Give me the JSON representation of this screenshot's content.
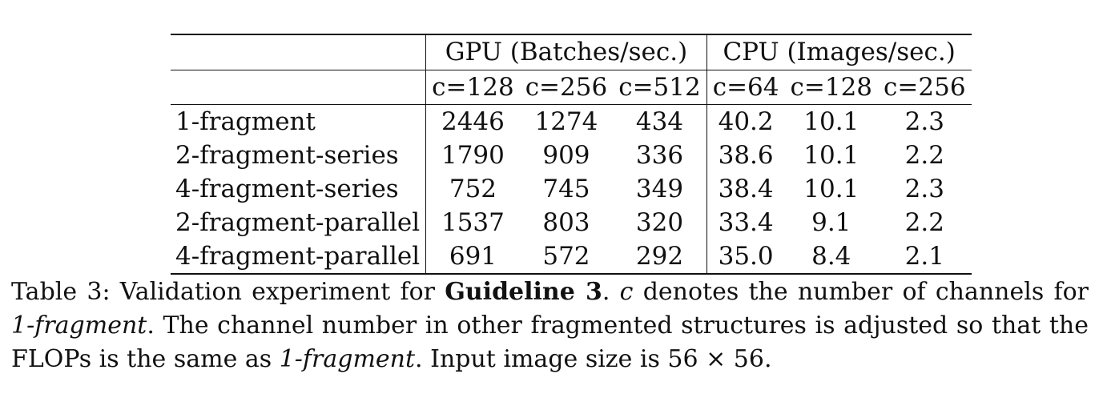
{
  "table": {
    "header": {
      "stub": "",
      "gpu_group": "GPU (Batches/sec.)",
      "cpu_group": "CPU (Images/sec.)",
      "gpu_columns": [
        "c=128",
        "c=256",
        "c=512"
      ],
      "cpu_columns": [
        "c=64",
        "c=128",
        "c=256"
      ]
    },
    "rows": [
      {
        "label": "1-fragment",
        "gpu": [
          "2446",
          "1274",
          "434"
        ],
        "cpu": [
          "40.2",
          "10.1",
          "2.3"
        ]
      },
      {
        "label": "2-fragment-series",
        "gpu": [
          "1790",
          "909",
          "336"
        ],
        "cpu": [
          "38.6",
          "10.1",
          "2.2"
        ]
      },
      {
        "label": "4-fragment-series",
        "gpu": [
          "752",
          "745",
          "349"
        ],
        "cpu": [
          "38.4",
          "10.1",
          "2.3"
        ]
      },
      {
        "label": "2-fragment-parallel",
        "gpu": [
          "1537",
          "803",
          "320"
        ],
        "cpu": [
          "33.4",
          "9.1",
          "2.2"
        ]
      },
      {
        "label": "4-fragment-parallel",
        "gpu": [
          "691",
          "572",
          "292"
        ],
        "cpu": [
          "35.0",
          "8.4",
          "2.1"
        ]
      }
    ]
  },
  "caption": {
    "prefix": "Table 3: Validation experiment for ",
    "bold": "Guideline 3",
    "part1": ". ",
    "var_c": "c",
    "part2": " denotes the number of channels for ",
    "italic1": "1-fragment",
    "part3": ". The channel number in other fragmented structures is adjusted so that the FLOPs is the same as ",
    "italic2": "1-fragment",
    "part4": ". Input image size is 56 × 56."
  }
}
